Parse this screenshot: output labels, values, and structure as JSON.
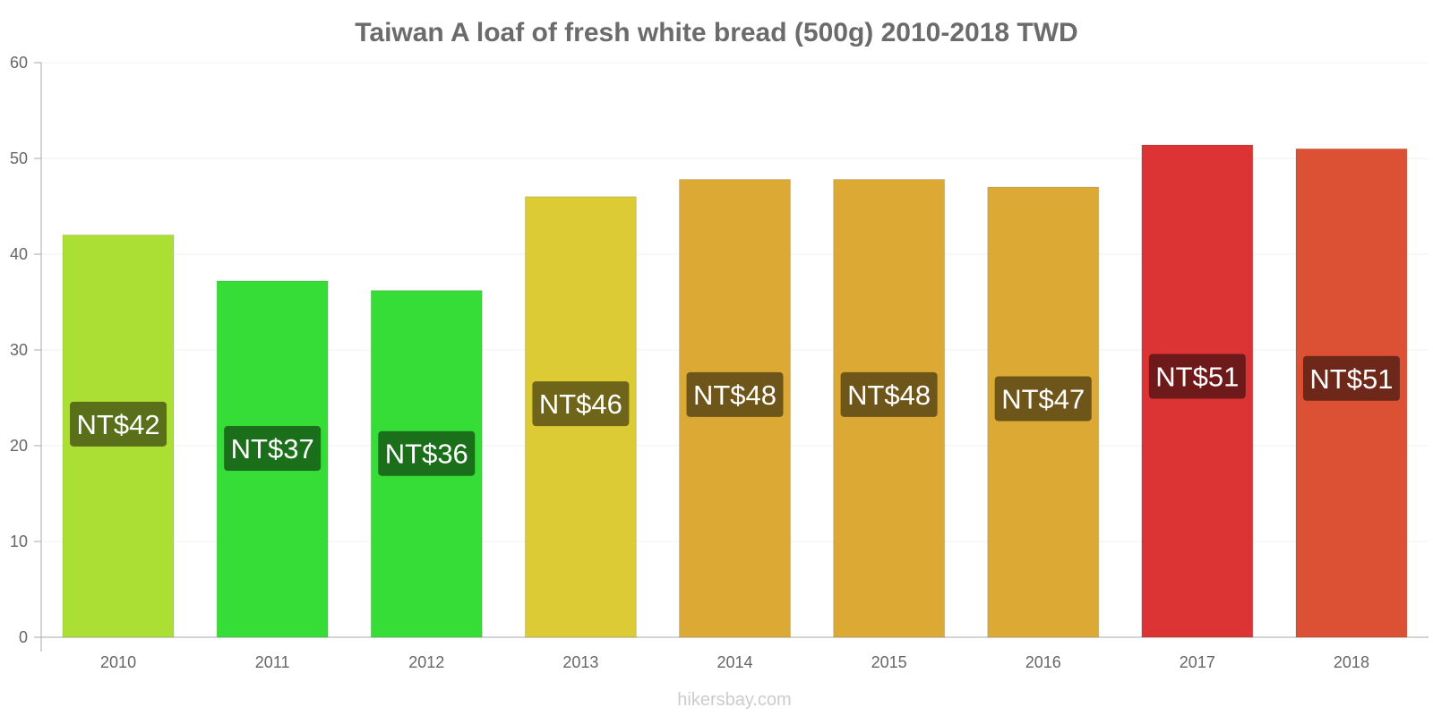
{
  "chart_data": {
    "type": "bar",
    "title": "Taiwan A loaf of fresh white bread (500g) 2010-2018 TWD",
    "xlabel": "",
    "ylabel": "",
    "categories": [
      "2010",
      "2011",
      "2012",
      "2013",
      "2014",
      "2015",
      "2016",
      "2017",
      "2018"
    ],
    "values": [
      42.0,
      37.2,
      36.2,
      46.0,
      47.8,
      47.8,
      47.0,
      51.4,
      51.0
    ],
    "data_labels": [
      "NT$42",
      "NT$37",
      "NT$36",
      "NT$46",
      "NT$48",
      "NT$48",
      "NT$47",
      "NT$51",
      "NT$51"
    ],
    "bar_colors": [
      "#acdf34",
      "#36dd36",
      "#36dd36",
      "#dccb34",
      "#dcaa34",
      "#dcaa34",
      "#dcaa34",
      "#dc3434",
      "#dc5034"
    ],
    "label_colors": [
      "#596f1a",
      "#1b6f1b",
      "#1b6f1b",
      "#6e651a",
      "#6e551a",
      "#6e551a",
      "#6e551a",
      "#6e1a1a",
      "#6e281a"
    ],
    "ylim": [
      0,
      60
    ],
    "yticks": [
      0,
      10,
      20,
      30,
      40,
      50,
      60
    ],
    "grid": true,
    "legend": "none"
  },
  "watermark": "hikersbay.com"
}
